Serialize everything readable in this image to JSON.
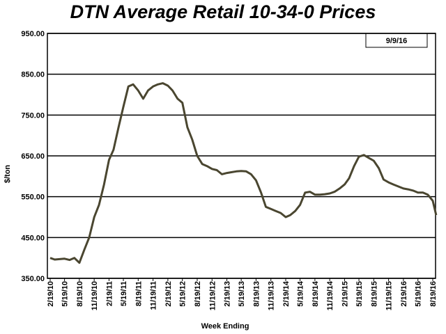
{
  "chart_data": {
    "type": "line",
    "title": "DTN Average Retail 10-34-0 Prices",
    "date_label": "9/9/16",
    "x_label": "Week Ending",
    "y_label": "$/ton",
    "x": [
      "2/19/10",
      "3/19/10",
      "4/19/10",
      "5/19/10",
      "6/19/10",
      "7/19/10",
      "8/19/10",
      "9/19/10",
      "10/19/10",
      "11/19/10",
      "12/19/10",
      "1/19/11",
      "2/19/11",
      "3/19/11",
      "4/19/11",
      "5/19/11",
      "6/19/11",
      "7/19/11",
      "8/19/11",
      "9/19/11",
      "10/19/11",
      "11/19/11",
      "12/19/11",
      "1/19/12",
      "2/19/12",
      "3/19/12",
      "4/19/12",
      "5/19/12",
      "6/19/12",
      "7/19/12",
      "8/19/12",
      "9/19/12",
      "10/19/12",
      "11/19/12",
      "12/19/12",
      "1/19/13",
      "2/19/13",
      "3/19/13",
      "4/19/13",
      "5/19/13",
      "6/19/13",
      "7/19/13",
      "8/19/13",
      "9/19/13",
      "10/19/13",
      "11/19/13",
      "12/19/13",
      "1/19/14",
      "2/19/14",
      "3/19/14",
      "4/19/14",
      "5/19/14",
      "6/19/14",
      "7/19/14",
      "8/19/14",
      "9/19/14",
      "10/19/14",
      "11/19/14",
      "12/19/14",
      "1/19/15",
      "2/19/15",
      "3/19/15",
      "4/19/15",
      "5/19/15",
      "6/19/15",
      "7/19/15",
      "8/19/15",
      "9/19/15",
      "10/19/15",
      "11/19/15",
      "12/19/15",
      "1/19/16",
      "2/19/16",
      "3/19/16",
      "4/19/16",
      "5/19/16",
      "6/19/16",
      "7/19/16",
      "8/19/16",
      "9/9/16"
    ],
    "series": [
      {
        "name": "10-34-0",
        "color": "#4a4630",
        "values": [
          400,
          396,
          397,
          398,
          395,
          400,
          388,
          420,
          450,
          500,
          530,
          580,
          640,
          665,
          720,
          770,
          820,
          825,
          810,
          790,
          810,
          820,
          825,
          828,
          822,
          810,
          790,
          780,
          720,
          690,
          650,
          630,
          625,
          618,
          615,
          605,
          608,
          610,
          612,
          613,
          612,
          605,
          590,
          560,
          525,
          520,
          515,
          510,
          500,
          505,
          515,
          530,
          560,
          562,
          555,
          555,
          556,
          558,
          562,
          570,
          580,
          595,
          625,
          648,
          652,
          645,
          638,
          620,
          592,
          585,
          580,
          575,
          570,
          568,
          565,
          560,
          560,
          555,
          540,
          505
        ]
      }
    ],
    "xlim": [
      "2/19/10",
      "8/19/16"
    ],
    "xticks": [
      "2/19/10",
      "5/19/10",
      "8/19/10",
      "11/19/10",
      "2/19/11",
      "5/19/11",
      "8/19/11",
      "11/19/11",
      "2/19/12",
      "5/19/12",
      "8/19/12",
      "11/19/12",
      "2/19/13",
      "5/19/13",
      "8/19/13",
      "11/19/13",
      "2/19/14",
      "5/19/14",
      "8/19/14",
      "11/19/14",
      "2/19/15",
      "5/19/15",
      "8/19/15",
      "11/19/15",
      "2/19/16",
      "5/19/16",
      "8/19/16"
    ],
    "ylim": [
      350,
      950
    ],
    "yticks": [
      {
        "value": 350,
        "label": "350.00"
      },
      {
        "value": 450,
        "label": "450.00"
      },
      {
        "value": 550,
        "label": "550.00"
      },
      {
        "value": 650,
        "label": "650.00"
      },
      {
        "value": 750,
        "label": "750.00"
      },
      {
        "value": 850,
        "label": "850.00"
      },
      {
        "value": 950,
        "label": "950.00"
      }
    ],
    "grid": true
  }
}
